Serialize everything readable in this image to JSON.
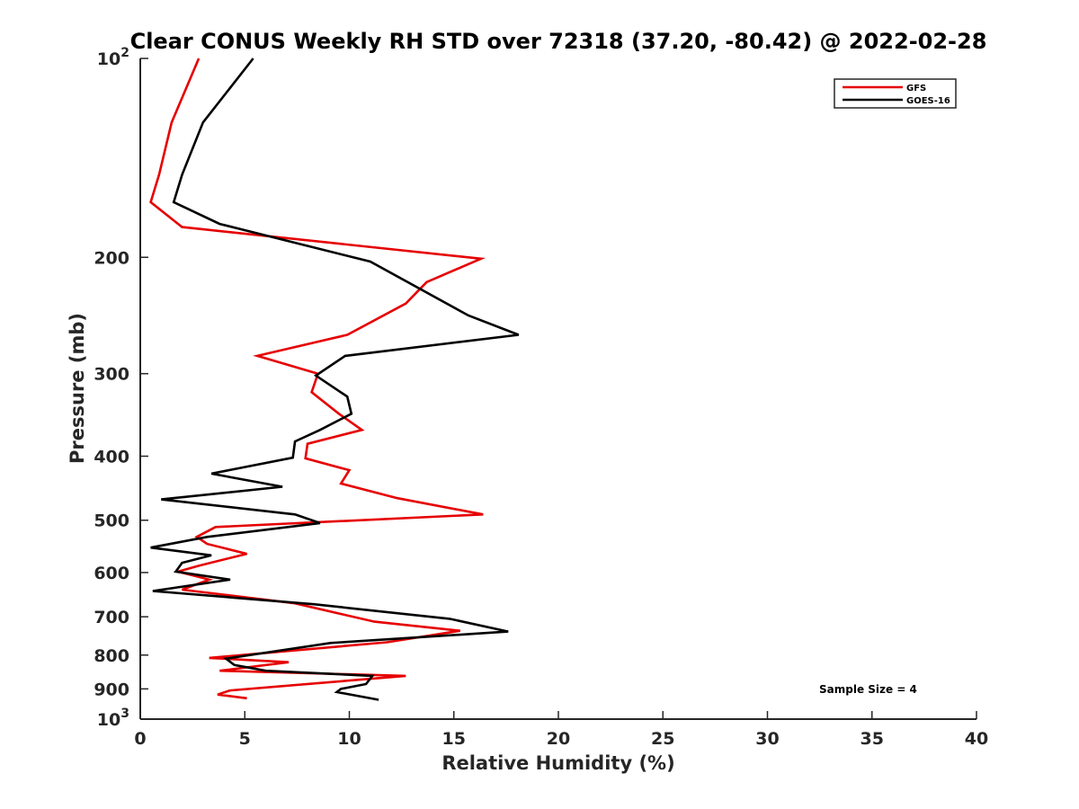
{
  "chart_data": {
    "type": "line",
    "title": "Clear CONUS Weekly RH STD over 72318 (37.20, -80.42) @ 2022-02-28",
    "xlabel": "Relative Humidity (%)",
    "ylabel": "Pressure (mb)",
    "xlim": [
      0,
      40
    ],
    "ylim": [
      100,
      1000
    ],
    "y_scale": "log",
    "y_reversed": true,
    "x_ticks": [
      "0",
      "5",
      "10",
      "15",
      "20",
      "25",
      "30",
      "35",
      "40"
    ],
    "y_ticks": [
      {
        "value": 100,
        "base": "10",
        "exp": "2"
      },
      {
        "value": 200,
        "label": "200"
      },
      {
        "value": 300,
        "label": "300"
      },
      {
        "value": 400,
        "label": "400"
      },
      {
        "value": 500,
        "label": "500"
      },
      {
        "value": 600,
        "label": "600"
      },
      {
        "value": 700,
        "label": "700"
      },
      {
        "value": 800,
        "label": "800"
      },
      {
        "value": 900,
        "label": "900"
      },
      {
        "value": 1000,
        "base": "10",
        "exp": "3"
      }
    ],
    "grid": false,
    "legend_position": "top-right",
    "series": [
      {
        "name": "GFS",
        "color": "#e60000",
        "points": [
          [
            2.8,
            100
          ],
          [
            1.5,
            125
          ],
          [
            0.9,
            150
          ],
          [
            0.5,
            165
          ],
          [
            2.0,
            180
          ],
          [
            16.3,
            201
          ],
          [
            13.7,
            218
          ],
          [
            12.7,
            235
          ],
          [
            9.9,
            262
          ],
          [
            5.6,
            282
          ],
          [
            8.5,
            300
          ],
          [
            8.2,
            320
          ],
          [
            9.5,
            345
          ],
          [
            10.6,
            365
          ],
          [
            8.0,
            383
          ],
          [
            7.9,
            403
          ],
          [
            10.0,
            420
          ],
          [
            9.6,
            440
          ],
          [
            12.3,
            463
          ],
          [
            16.4,
            490
          ],
          [
            3.6,
            512
          ],
          [
            2.7,
            530
          ],
          [
            3.2,
            543
          ],
          [
            5.1,
            562
          ],
          [
            2.8,
            586
          ],
          [
            1.8,
            598
          ],
          [
            3.3,
            615
          ],
          [
            2.0,
            637
          ],
          [
            7.4,
            668
          ],
          [
            11.2,
            712
          ],
          [
            15.3,
            735
          ],
          [
            11.8,
            765
          ],
          [
            3.3,
            808
          ],
          [
            7.1,
            820
          ],
          [
            3.8,
            845
          ],
          [
            12.7,
            860
          ],
          [
            4.3,
            905
          ],
          [
            3.7,
            918
          ],
          [
            5.1,
            930
          ]
        ]
      },
      {
        "name": "GOES-16",
        "color": "#000000",
        "points": [
          [
            5.4,
            100
          ],
          [
            3.0,
            125
          ],
          [
            2.0,
            150
          ],
          [
            1.6,
            165
          ],
          [
            3.8,
            178
          ],
          [
            11.0,
            203
          ],
          [
            15.7,
            245
          ],
          [
            18.1,
            262
          ],
          [
            9.8,
            282
          ],
          [
            8.4,
            302
          ],
          [
            9.9,
            325
          ],
          [
            10.1,
            345
          ],
          [
            8.6,
            365
          ],
          [
            7.4,
            380
          ],
          [
            7.3,
            402
          ],
          [
            3.4,
            425
          ],
          [
            6.8,
            445
          ],
          [
            1.0,
            465
          ],
          [
            7.4,
            490
          ],
          [
            8.6,
            505
          ],
          [
            3.2,
            530
          ],
          [
            0.5,
            550
          ],
          [
            3.4,
            565
          ],
          [
            2.0,
            580
          ],
          [
            1.7,
            598
          ],
          [
            4.3,
            615
          ],
          [
            0.6,
            640
          ],
          [
            8.3,
            670
          ],
          [
            14.8,
            705
          ],
          [
            17.6,
            737
          ],
          [
            9.1,
            767
          ],
          [
            4.1,
            810
          ],
          [
            4.5,
            828
          ],
          [
            6.0,
            845
          ],
          [
            11.1,
            860
          ],
          [
            10.8,
            885
          ],
          [
            9.6,
            900
          ],
          [
            9.4,
            910
          ],
          [
            11.4,
            935
          ]
        ]
      }
    ],
    "annotations": [
      "Sample Size = 4"
    ]
  }
}
